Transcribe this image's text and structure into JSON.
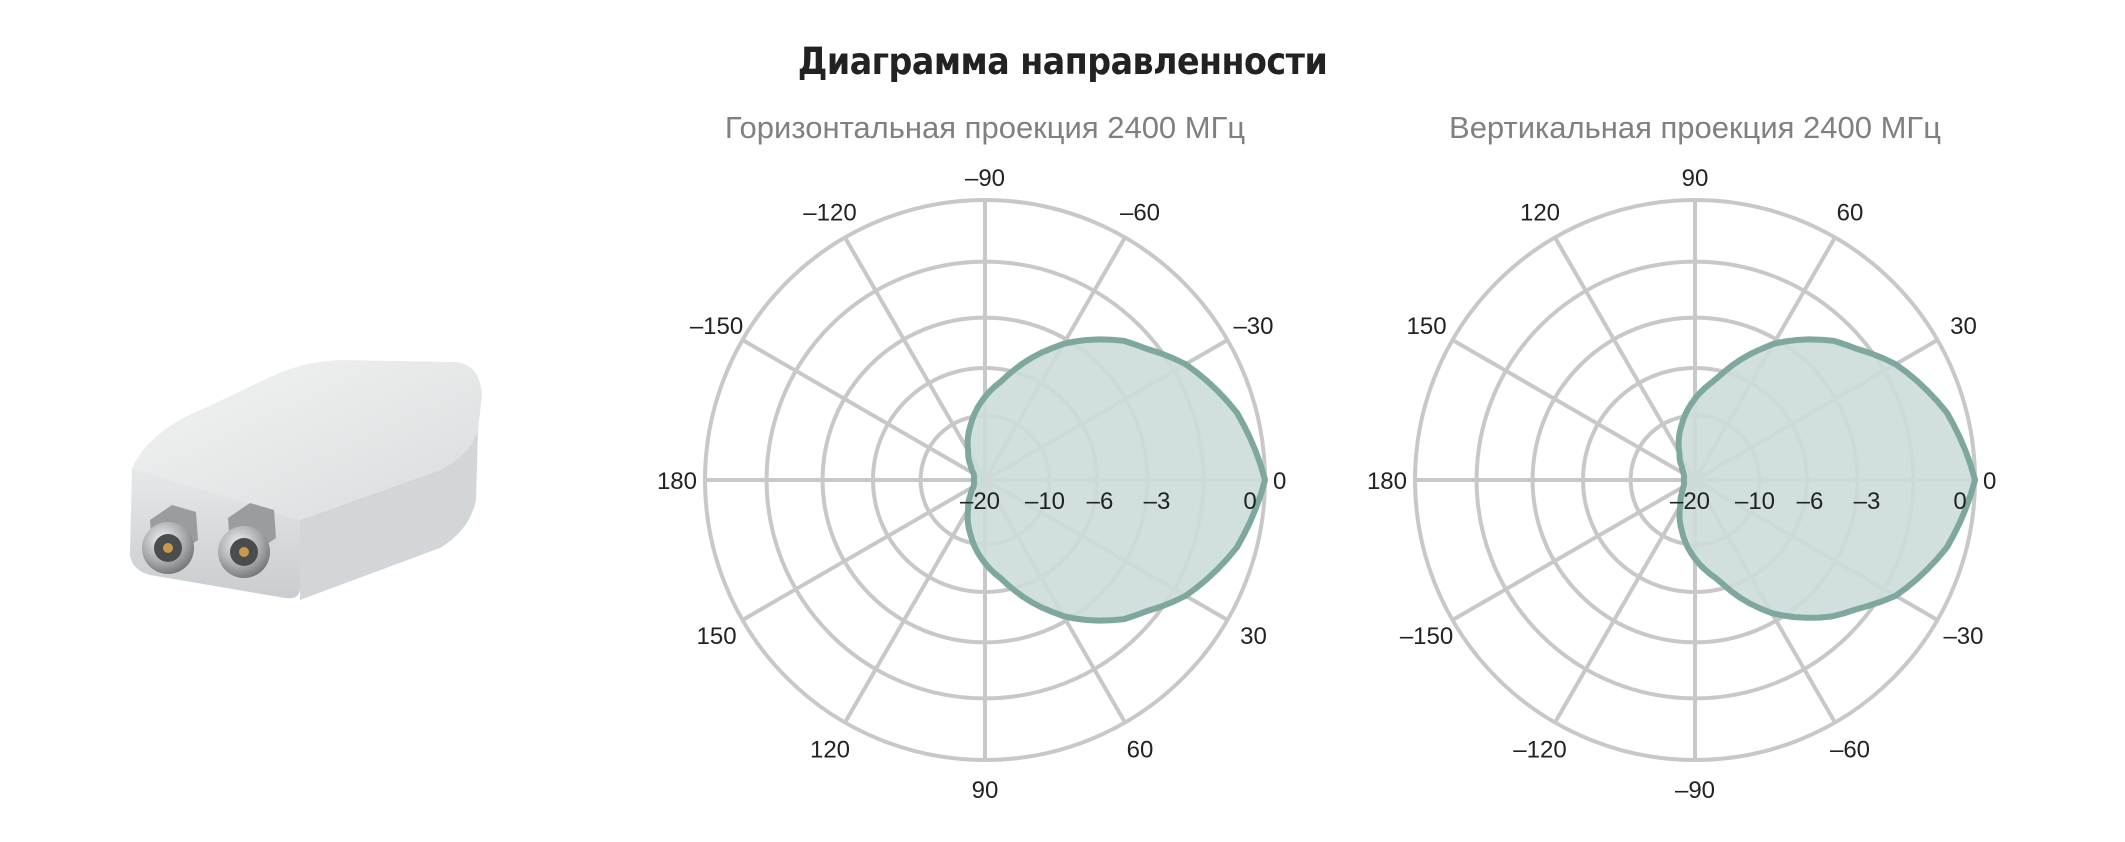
{
  "page": {
    "title": "Диаграмма направленности"
  },
  "colors": {
    "grid": "#c8c8c8",
    "fill": "#cddcdb",
    "stroke": "#7ea89e",
    "title": "#222222",
    "subtitle": "#808080",
    "label": "#222222"
  },
  "product_image": {
    "name": "antenna-device"
  },
  "chart_data": [
    {
      "type": "polar",
      "title": "Горизонтальная проекция 2400 МГц",
      "angle_labels": [
        {
          "angle": 0,
          "label": "0"
        },
        {
          "angle": 30,
          "label": "30"
        },
        {
          "angle": 60,
          "label": "60"
        },
        {
          "angle": 90,
          "label": "90"
        },
        {
          "angle": 120,
          "label": "120"
        },
        {
          "angle": 150,
          "label": "150"
        },
        {
          "angle": 180,
          "label": "180"
        },
        {
          "angle": -150,
          "label": "–150"
        },
        {
          "angle": -120,
          "label": "–120"
        },
        {
          "angle": -90,
          "label": "–90"
        },
        {
          "angle": -60,
          "label": "–60"
        },
        {
          "angle": -30,
          "label": "–30"
        }
      ],
      "radial_labels": [
        "–20",
        "–10",
        "–6",
        "–3",
        "0"
      ],
      "rings_db": [
        -20,
        -10,
        -6,
        -3,
        0
      ],
      "series": [
        {
          "angles_deg": [
            0,
            15,
            30,
            45,
            60,
            75,
            90,
            105,
            120,
            135,
            150,
            165,
            180,
            195,
            210,
            225,
            240,
            255,
            270,
            285,
            300,
            315,
            330,
            345
          ],
          "gain_db": [
            0,
            -0.8,
            -2,
            -3.6,
            -5.8,
            -9,
            -12,
            -15,
            -17.5,
            -19,
            -19.8,
            -20,
            -20,
            -20,
            -19.8,
            -19,
            -17.5,
            -15,
            -12,
            -9,
            -5.8,
            -3.6,
            -2,
            -0.8
          ]
        }
      ]
    },
    {
      "type": "polar",
      "title": "Вертикальная проекция 2400 МГц",
      "angle_labels": [
        {
          "angle": 0,
          "label": "0"
        },
        {
          "angle": 30,
          "label": "–30"
        },
        {
          "angle": 60,
          "label": "–60"
        },
        {
          "angle": 90,
          "label": "–90"
        },
        {
          "angle": 120,
          "label": "–120"
        },
        {
          "angle": 150,
          "label": "–150"
        },
        {
          "angle": 180,
          "label": "180"
        },
        {
          "angle": -150,
          "label": "150"
        },
        {
          "angle": -120,
          "label": "120"
        },
        {
          "angle": -90,
          "label": "90"
        },
        {
          "angle": -60,
          "label": "60"
        },
        {
          "angle": -30,
          "label": "30"
        }
      ],
      "radial_labels": [
        "–20",
        "–10",
        "–6",
        "–3",
        "0"
      ],
      "rings_db": [
        -20,
        -10,
        -6,
        -3,
        0
      ],
      "series": [
        {
          "angles_deg": [
            0,
            15,
            30,
            45,
            60,
            75,
            90,
            105,
            120,
            135,
            150,
            165,
            180,
            195,
            210,
            225,
            240,
            255,
            270,
            285,
            300,
            315,
            330,
            345
          ],
          "gain_db": [
            0,
            -0.8,
            -2,
            -3.8,
            -6,
            -9.5,
            -12.5,
            -15.5,
            -18,
            -19.2,
            -19.8,
            -20,
            -20,
            -20,
            -19.8,
            -19.2,
            -17.8,
            -15.2,
            -12.2,
            -9.2,
            -5.8,
            -3.6,
            -2,
            -0.8
          ]
        }
      ]
    }
  ]
}
